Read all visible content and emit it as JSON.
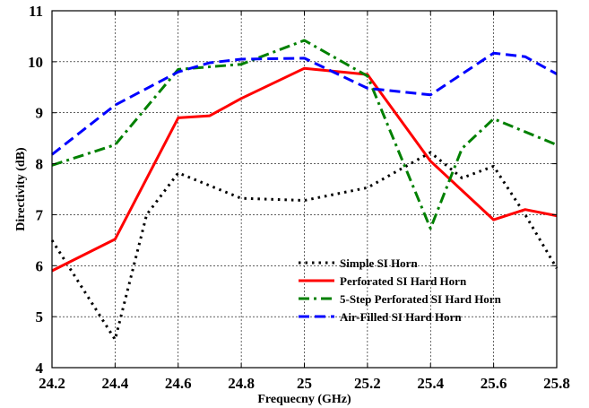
{
  "chart_data": {
    "type": "line",
    "xlabel": "Frequecny (GHz)",
    "ylabel": "Directivity (dB)",
    "xlim": [
      24.2,
      25.8
    ],
    "ylim": [
      4,
      11
    ],
    "xticks": [
      "24.2",
      "24.4",
      "24.6",
      "24.8",
      "25",
      "25.2",
      "25.4",
      "25.6",
      "25.8"
    ],
    "yticks": [
      "4",
      "5",
      "6",
      "7",
      "8",
      "9",
      "10",
      "11"
    ],
    "grid": true,
    "legend_position": "bottom-right",
    "series": [
      {
        "name": "Simple SI Horn",
        "color": "#000000",
        "dash": "dotted",
        "x": [
          24.2,
          24.4,
          24.5,
          24.6,
          24.8,
          25.0,
          25.2,
          25.4,
          25.5,
          25.6,
          25.7,
          25.8
        ],
        "y": [
          6.5,
          4.55,
          7.0,
          7.82,
          7.32,
          7.28,
          7.53,
          8.22,
          7.72,
          7.95,
          7.0,
          5.95
        ]
      },
      {
        "name": "Perforated SI Hard Horn",
        "color": "#ff0000",
        "dash": "solid",
        "x": [
          24.2,
          24.4,
          24.6,
          24.7,
          24.8,
          25.0,
          25.2,
          25.4,
          25.6,
          25.7,
          25.8
        ],
        "y": [
          5.9,
          6.52,
          8.9,
          8.94,
          9.28,
          9.87,
          9.75,
          8.05,
          6.9,
          7.1,
          6.98
        ]
      },
      {
        "name": "5-Step Perforated SI Hard Horn",
        "color": "#008000",
        "dash": "dashdot",
        "x": [
          24.2,
          24.4,
          24.6,
          24.7,
          24.8,
          25.0,
          25.2,
          25.4,
          25.5,
          25.6,
          25.8
        ],
        "y": [
          7.97,
          8.37,
          9.85,
          9.9,
          9.95,
          10.42,
          9.72,
          6.73,
          8.3,
          8.88,
          8.37
        ]
      },
      {
        "name": "Air-Filled SI Hard Horn",
        "color": "#0000ff",
        "dash": "dashed",
        "x": [
          24.2,
          24.4,
          24.6,
          24.7,
          24.8,
          25.0,
          25.2,
          25.4,
          25.6,
          25.7,
          25.8
        ],
        "y": [
          8.18,
          9.15,
          9.8,
          9.98,
          10.05,
          10.07,
          9.48,
          9.35,
          10.17,
          10.1,
          9.76
        ]
      }
    ]
  }
}
